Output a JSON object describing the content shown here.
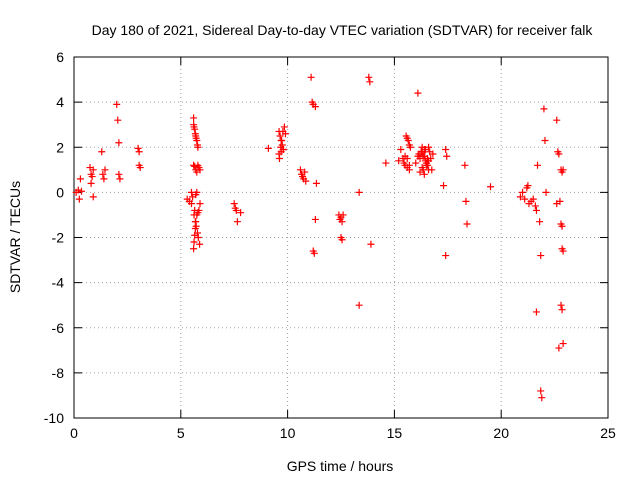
{
  "chart_data": {
    "type": "scatter",
    "title": "Day 180 of 2021, Sidereal Day-to-day VTEC variation (SDTVAR) for receiver falk",
    "xlabel": "GPS time / hours",
    "ylabel": "SDTVAR / TECUs",
    "xlim": [
      0,
      25
    ],
    "ylim": [
      -10,
      6
    ],
    "xticks": [
      0,
      5,
      10,
      15,
      20,
      25
    ],
    "yticks": [
      -10,
      -8,
      -6,
      -4,
      -2,
      0,
      2,
      4,
      6
    ],
    "grid": true,
    "marker": "+",
    "color": "#ff0000",
    "x": [
      0.1,
      0.2,
      0.25,
      0.3,
      0.35,
      0.75,
      0.8,
      0.8,
      0.85,
      0.9,
      0.9,
      1.3,
      1.35,
      1.4,
      1.45,
      2.0,
      2.05,
      2.1,
      2.1,
      2.15,
      3.0,
      3.05,
      3.1,
      3.05,
      5.3,
      5.4,
      5.5,
      5.5,
      5.55,
      5.6,
      5.6,
      5.62,
      5.65,
      5.68,
      5.7,
      5.72,
      5.75,
      5.78,
      5.8,
      5.85,
      5.9,
      5.6,
      5.62,
      5.65,
      5.68,
      5.7,
      5.75,
      5.8,
      5.85,
      5.9,
      5.6,
      5.65,
      5.7,
      5.75,
      5.8,
      5.65,
      5.7,
      5.75,
      5.62,
      5.68,
      5.72,
      5.78,
      5.82,
      5.88,
      7.5,
      7.55,
      7.6,
      7.65,
      7.8,
      9.1,
      9.6,
      9.65,
      9.7,
      9.75,
      9.8,
      9.85,
      9.9,
      9.62,
      9.68,
      9.72,
      9.78,
      9.6,
      9.7,
      9.8,
      10.6,
      10.65,
      10.7,
      10.75,
      10.8,
      10.85,
      11.1,
      11.15,
      11.2,
      11.3,
      11.35,
      11.3,
      11.2,
      11.25,
      12.4,
      12.45,
      12.5,
      12.55,
      12.6,
      12.5,
      12.55,
      13.35,
      13.35,
      13.8,
      13.85,
      13.9,
      14.6,
      15.2,
      15.3,
      15.4,
      15.45,
      15.5,
      15.55,
      15.6,
      15.65,
      15.7,
      15.75,
      15.5,
      15.6,
      15.7,
      15.6,
      15.7,
      16.0,
      16.1,
      16.15,
      16.2,
      16.25,
      16.3,
      16.35,
      16.4,
      16.45,
      16.5,
      16.55,
      16.6,
      16.65,
      16.7,
      16.75,
      16.2,
      16.3,
      16.4,
      16.5,
      16.6,
      16.3,
      16.4,
      16.5,
      16.6,
      16.25,
      16.35,
      16.45,
      16.55,
      16.1,
      16.8,
      17.3,
      17.4,
      17.45,
      17.4,
      18.3,
      18.35,
      18.4,
      19.5,
      20.9,
      21.0,
      21.1,
      21.2,
      21.25,
      21.3,
      21.4,
      21.5,
      21.6,
      21.65,
      21.7,
      21.8,
      21.85,
      22.0,
      22.05,
      22.1,
      22.6,
      22.65,
      22.7,
      22.75,
      22.8,
      22.85,
      22.9,
      22.8,
      22.85,
      22.9,
      22.85,
      22.8,
      22.85,
      22.9,
      21.85,
      21.9,
      21.65,
      22.7,
      22.6
    ],
    "y": [
      0.0,
      0.1,
      -0.3,
      0.6,
      0.05,
      1.1,
      0.8,
      0.4,
      0.7,
      -0.2,
      1.0,
      1.8,
      0.8,
      0.6,
      1.0,
      3.9,
      3.2,
      2.2,
      0.8,
      0.6,
      1.95,
      1.8,
      1.1,
      1.2,
      -0.3,
      -0.4,
      -0.5,
      0.0,
      -0.2,
      3.3,
      3.0,
      2.9,
      2.8,
      2.6,
      2.5,
      2.4,
      2.3,
      2.1,
      2.0,
      1.1,
      1.0,
      -2.5,
      -2.2,
      -1.9,
      -1.6,
      -1.3,
      -1.0,
      -0.9,
      -0.8,
      -0.5,
      1.2,
      1.15,
      1.0,
      0.9,
      1.2,
      -0.8,
      -0.1,
      0.0,
      -1.0,
      -1.3,
      -1.5,
      -1.8,
      -2.0,
      -2.3,
      -0.5,
      -0.7,
      -0.8,
      -1.3,
      -0.9,
      1.95,
      2.7,
      2.5,
      2.3,
      2.1,
      1.9,
      2.9,
      2.6,
      1.5,
      2.0,
      2.3,
      2.7,
      1.7,
      1.8,
      1.9,
      1.0,
      0.8,
      0.7,
      0.6,
      0.9,
      0.5,
      5.1,
      4.0,
      3.9,
      3.8,
      0.4,
      -1.2,
      -2.6,
      -2.7,
      -1.0,
      -1.2,
      -1.1,
      -1.3,
      -1.0,
      -2.0,
      -2.1,
      -5.0,
      0.0,
      5.1,
      4.9,
      -2.3,
      1.3,
      1.4,
      1.9,
      1.5,
      1.3,
      1.2,
      2.5,
      2.4,
      2.3,
      2.1,
      2.0,
      1.6,
      1.5,
      1.0,
      1.1,
      1.2,
      1.3,
      4.4,
      1.7,
      1.5,
      1.8,
      2.0,
      1.6,
      1.9,
      1.4,
      1.3,
      1.2,
      2.0,
      1.8,
      1.5,
      1.0,
      0.9,
      1.1,
      0.8,
      1.3,
      1.0,
      1.7,
      1.6,
      1.2,
      1.4,
      1.8,
      1.0,
      1.9,
      1.5,
      1.6,
      1.7,
      0.3,
      1.9,
      1.6,
      -2.8,
      1.2,
      -0.4,
      -1.4,
      0.25,
      -0.2,
      0.0,
      -0.3,
      0.2,
      0.3,
      -0.5,
      -0.4,
      -0.3,
      -0.6,
      -0.8,
      1.2,
      -1.3,
      -2.8,
      3.7,
      2.3,
      0.0,
      3.2,
      1.8,
      1.7,
      -0.4,
      1.0,
      0.9,
      1.0,
      -1.4,
      -1.5,
      -2.6,
      -2.5,
      -5.0,
      -5.2,
      -6.7,
      -8.8,
      -9.1,
      -5.3,
      -6.9,
      -0.5
    ]
  }
}
